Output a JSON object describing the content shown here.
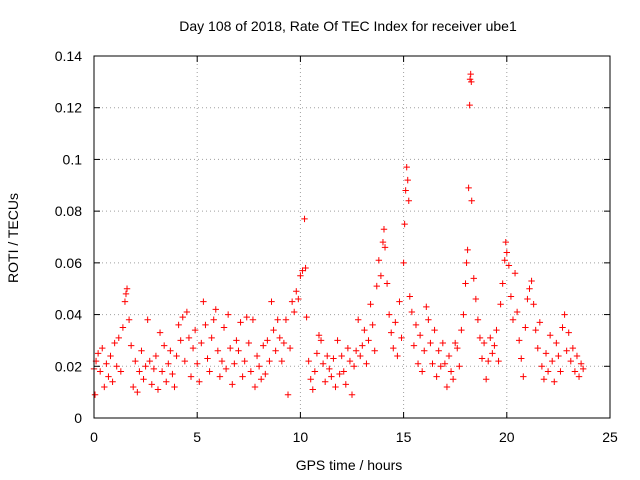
{
  "chart_data": {
    "type": "scatter",
    "title": "Day 108 of 2018, Rate Of TEC Index for receiver ube1",
    "xlabel": "GPS time / hours",
    "ylabel": "ROTI / TECUs",
    "xlim": [
      0,
      25
    ],
    "ylim": [
      0,
      0.14
    ],
    "x_ticks": [
      0,
      5,
      10,
      15,
      20,
      25
    ],
    "x_tick_labels": [
      "0",
      "5",
      "10",
      "15",
      "20",
      "25"
    ],
    "y_ticks": [
      0,
      0.02,
      0.04,
      0.06,
      0.08,
      0.1,
      0.12,
      0.14
    ],
    "y_tick_labels": [
      "0",
      "0.02",
      "0.04",
      "0.06",
      "0.08",
      "0.1",
      "0.12",
      "0.14"
    ],
    "grid": true,
    "marker": "plus",
    "color": "#ff0000",
    "series": [
      {
        "points": [
          [
            0.0,
            0.019
          ],
          [
            0.05,
            0.009
          ],
          [
            0.1,
            0.022
          ],
          [
            0.2,
            0.025
          ],
          [
            0.3,
            0.018
          ],
          [
            0.4,
            0.027
          ],
          [
            0.5,
            0.012
          ],
          [
            0.6,
            0.021
          ],
          [
            0.7,
            0.016
          ],
          [
            0.8,
            0.024
          ],
          [
            0.9,
            0.014
          ],
          [
            1.0,
            0.029
          ],
          [
            1.1,
            0.02
          ],
          [
            1.2,
            0.031
          ],
          [
            1.3,
            0.018
          ],
          [
            1.4,
            0.035
          ],
          [
            1.5,
            0.045
          ],
          [
            1.55,
            0.048
          ],
          [
            1.6,
            0.05
          ],
          [
            1.7,
            0.038
          ],
          [
            1.8,
            0.028
          ],
          [
            1.9,
            0.012
          ],
          [
            2.0,
            0.022
          ],
          [
            2.1,
            0.01
          ],
          [
            2.2,
            0.018
          ],
          [
            2.3,
            0.026
          ],
          [
            2.4,
            0.015
          ],
          [
            2.5,
            0.02
          ],
          [
            2.6,
            0.038
          ],
          [
            2.7,
            0.022
          ],
          [
            2.8,
            0.013
          ],
          [
            2.9,
            0.019
          ],
          [
            3.0,
            0.024
          ],
          [
            3.1,
            0.011
          ],
          [
            3.2,
            0.033
          ],
          [
            3.3,
            0.018
          ],
          [
            3.4,
            0.028
          ],
          [
            3.5,
            0.014
          ],
          [
            3.6,
            0.021
          ],
          [
            3.7,
            0.026
          ],
          [
            3.8,
            0.017
          ],
          [
            3.9,
            0.012
          ],
          [
            4.0,
            0.024
          ],
          [
            4.1,
            0.036
          ],
          [
            4.2,
            0.03
          ],
          [
            4.3,
            0.039
          ],
          [
            4.4,
            0.022
          ],
          [
            4.5,
            0.041
          ],
          [
            4.6,
            0.031
          ],
          [
            4.7,
            0.016
          ],
          [
            4.8,
            0.027
          ],
          [
            4.9,
            0.034
          ],
          [
            5.0,
            0.021
          ],
          [
            5.1,
            0.014
          ],
          [
            5.2,
            0.029
          ],
          [
            5.3,
            0.045
          ],
          [
            5.4,
            0.036
          ],
          [
            5.5,
            0.023
          ],
          [
            5.6,
            0.018
          ],
          [
            5.7,
            0.031
          ],
          [
            5.8,
            0.038
          ],
          [
            5.9,
            0.042
          ],
          [
            6.0,
            0.026
          ],
          [
            6.1,
            0.016
          ],
          [
            6.2,
            0.022
          ],
          [
            6.3,
            0.035
          ],
          [
            6.4,
            0.019
          ],
          [
            6.5,
            0.04
          ],
          [
            6.6,
            0.027
          ],
          [
            6.7,
            0.013
          ],
          [
            6.8,
            0.021
          ],
          [
            6.9,
            0.03
          ],
          [
            7.0,
            0.026
          ],
          [
            7.1,
            0.037
          ],
          [
            7.2,
            0.016
          ],
          [
            7.3,
            0.022
          ],
          [
            7.4,
            0.039
          ],
          [
            7.5,
            0.029
          ],
          [
            7.6,
            0.018
          ],
          [
            7.7,
            0.038
          ],
          [
            7.8,
            0.012
          ],
          [
            7.9,
            0.024
          ],
          [
            8.0,
            0.02
          ],
          [
            8.1,
            0.015
          ],
          [
            8.2,
            0.028
          ],
          [
            8.3,
            0.017
          ],
          [
            8.4,
            0.03
          ],
          [
            8.5,
            0.022
          ],
          [
            8.6,
            0.045
          ],
          [
            8.7,
            0.034
          ],
          [
            8.8,
            0.026
          ],
          [
            8.9,
            0.038
          ],
          [
            9.0,
            0.031
          ],
          [
            9.1,
            0.022
          ],
          [
            9.2,
            0.029
          ],
          [
            9.3,
            0.038
          ],
          [
            9.4,
            0.009
          ],
          [
            9.5,
            0.027
          ],
          [
            9.6,
            0.045
          ],
          [
            9.7,
            0.041
          ],
          [
            9.8,
            0.049
          ],
          [
            9.9,
            0.046
          ],
          [
            10.0,
            0.055
          ],
          [
            10.1,
            0.057
          ],
          [
            10.2,
            0.077
          ],
          [
            10.25,
            0.058
          ],
          [
            10.3,
            0.039
          ],
          [
            10.4,
            0.022
          ],
          [
            10.5,
            0.015
          ],
          [
            10.6,
            0.011
          ],
          [
            10.7,
            0.018
          ],
          [
            10.8,
            0.025
          ],
          [
            10.9,
            0.032
          ],
          [
            11.0,
            0.03
          ],
          [
            11.1,
            0.021
          ],
          [
            11.2,
            0.014
          ],
          [
            11.3,
            0.024
          ],
          [
            11.4,
            0.019
          ],
          [
            11.5,
            0.016
          ],
          [
            11.6,
            0.023
          ],
          [
            11.7,
            0.012
          ],
          [
            11.8,
            0.03
          ],
          [
            11.9,
            0.017
          ],
          [
            12.0,
            0.024
          ],
          [
            12.1,
            0.018
          ],
          [
            12.2,
            0.013
          ],
          [
            12.3,
            0.027
          ],
          [
            12.4,
            0.022
          ],
          [
            12.5,
            0.009
          ],
          [
            12.6,
            0.02
          ],
          [
            12.7,
            0.026
          ],
          [
            12.8,
            0.038
          ],
          [
            12.9,
            0.024
          ],
          [
            13.0,
            0.028
          ],
          [
            13.1,
            0.034
          ],
          [
            13.2,
            0.021
          ],
          [
            13.3,
            0.03
          ],
          [
            13.4,
            0.044
          ],
          [
            13.5,
            0.036
          ],
          [
            13.6,
            0.026
          ],
          [
            13.7,
            0.051
          ],
          [
            13.8,
            0.061
          ],
          [
            13.9,
            0.055
          ],
          [
            14.0,
            0.068
          ],
          [
            14.05,
            0.073
          ],
          [
            14.1,
            0.066
          ],
          [
            14.2,
            0.052
          ],
          [
            14.3,
            0.04
          ],
          [
            14.4,
            0.033
          ],
          [
            14.5,
            0.027
          ],
          [
            14.6,
            0.037
          ],
          [
            14.7,
            0.024
          ],
          [
            14.8,
            0.045
          ],
          [
            14.9,
            0.031
          ],
          [
            15.0,
            0.06
          ],
          [
            15.05,
            0.075
          ],
          [
            15.1,
            0.088
          ],
          [
            15.15,
            0.097
          ],
          [
            15.2,
            0.092
          ],
          [
            15.25,
            0.084
          ],
          [
            15.3,
            0.047
          ],
          [
            15.4,
            0.041
          ],
          [
            15.5,
            0.028
          ],
          [
            15.6,
            0.036
          ],
          [
            15.7,
            0.021
          ],
          [
            15.8,
            0.032
          ],
          [
            15.9,
            0.018
          ],
          [
            16.0,
            0.026
          ],
          [
            16.1,
            0.043
          ],
          [
            16.2,
            0.038
          ],
          [
            16.3,
            0.029
          ],
          [
            16.4,
            0.021
          ],
          [
            16.5,
            0.034
          ],
          [
            16.6,
            0.016
          ],
          [
            16.7,
            0.026
          ],
          [
            16.8,
            0.02
          ],
          [
            16.9,
            0.029
          ],
          [
            17.0,
            0.021
          ],
          [
            17.1,
            0.012
          ],
          [
            17.2,
            0.024
          ],
          [
            17.3,
            0.018
          ],
          [
            17.4,
            0.015
          ],
          [
            17.5,
            0.029
          ],
          [
            17.6,
            0.027
          ],
          [
            17.7,
            0.02
          ],
          [
            17.8,
            0.034
          ],
          [
            17.9,
            0.04
          ],
          [
            18.0,
            0.052
          ],
          [
            18.05,
            0.06
          ],
          [
            18.1,
            0.065
          ],
          [
            18.15,
            0.089
          ],
          [
            18.2,
            0.121
          ],
          [
            18.22,
            0.131
          ],
          [
            18.25,
            0.133
          ],
          [
            18.28,
            0.13
          ],
          [
            18.3,
            0.084
          ],
          [
            18.4,
            0.054
          ],
          [
            18.5,
            0.046
          ],
          [
            18.6,
            0.038
          ],
          [
            18.7,
            0.031
          ],
          [
            18.8,
            0.023
          ],
          [
            18.9,
            0.029
          ],
          [
            19.0,
            0.015
          ],
          [
            19.1,
            0.022
          ],
          [
            19.2,
            0.031
          ],
          [
            19.3,
            0.025
          ],
          [
            19.4,
            0.028
          ],
          [
            19.5,
            0.034
          ],
          [
            19.6,
            0.022
          ],
          [
            19.7,
            0.044
          ],
          [
            19.8,
            0.052
          ],
          [
            19.9,
            0.061
          ],
          [
            19.95,
            0.068
          ],
          [
            20.0,
            0.064
          ],
          [
            20.1,
            0.059
          ],
          [
            20.2,
            0.047
          ],
          [
            20.3,
            0.038
          ],
          [
            20.4,
            0.056
          ],
          [
            20.5,
            0.041
          ],
          [
            20.6,
            0.03
          ],
          [
            20.7,
            0.023
          ],
          [
            20.8,
            0.016
          ],
          [
            20.9,
            0.035
          ],
          [
            21.0,
            0.046
          ],
          [
            21.1,
            0.05
          ],
          [
            21.2,
            0.053
          ],
          [
            21.3,
            0.044
          ],
          [
            21.4,
            0.034
          ],
          [
            21.5,
            0.027
          ],
          [
            21.6,
            0.037
          ],
          [
            21.7,
            0.02
          ],
          [
            21.8,
            0.015
          ],
          [
            21.9,
            0.025
          ],
          [
            22.0,
            0.018
          ],
          [
            22.1,
            0.032
          ],
          [
            22.2,
            0.022
          ],
          [
            22.3,
            0.014
          ],
          [
            22.4,
            0.029
          ],
          [
            22.5,
            0.024
          ],
          [
            22.6,
            0.018
          ],
          [
            22.7,
            0.035
          ],
          [
            22.8,
            0.04
          ],
          [
            22.9,
            0.026
          ],
          [
            23.0,
            0.033
          ],
          [
            23.1,
            0.022
          ],
          [
            23.2,
            0.027
          ],
          [
            23.3,
            0.018
          ],
          [
            23.4,
            0.024
          ],
          [
            23.5,
            0.016
          ],
          [
            23.6,
            0.021
          ],
          [
            23.7,
            0.019
          ]
        ]
      }
    ]
  }
}
